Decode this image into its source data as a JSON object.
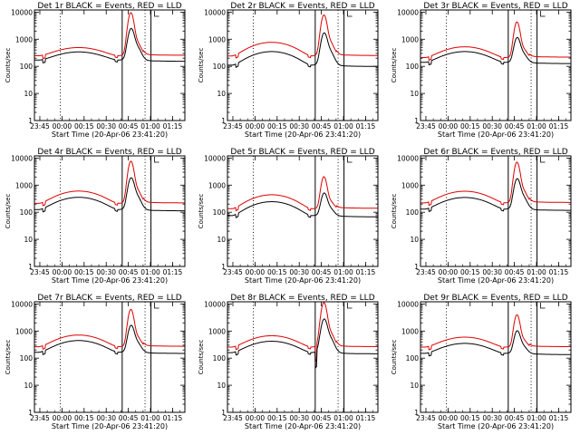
{
  "chart_data": {
    "type": "line",
    "layout": "3x3 grid",
    "shared": {
      "ylabel": "Counts/sec",
      "xlabel": "Start Time (20-Apr-06 23:41:20)",
      "x_tick_labels": [
        "23:45",
        "00:00",
        "00:15",
        "00:30",
        "00:45",
        "01:00",
        "01:15"
      ],
      "x_tick_minutes": [
        3.67,
        18.67,
        33.67,
        48.67,
        63.67,
        78.67,
        93.67
      ],
      "x_range_minutes": [
        0,
        102
      ],
      "y_scale": "log",
      "y_range": [
        1,
        12000
      ],
      "y_tick_labels": [
        "1",
        "10",
        "100",
        "1000",
        "10000"
      ],
      "y_tick_values": [
        1,
        10,
        100,
        1000,
        10000
      ],
      "vertical_lines": [
        {
          "x_minutes": 17.5,
          "style": "dotted"
        },
        {
          "x_minutes": 59.5,
          "style": "solid"
        },
        {
          "x_minutes": 75.0,
          "style": "dotted"
        },
        {
          "x_minutes": 79.0,
          "style": "solid"
        }
      ],
      "series_names": [
        "Events (BLACK)",
        "LLD (RED)"
      ],
      "series_colors": [
        "#000000",
        "#dd0000"
      ]
    },
    "panels": [
      {
        "title": "Det 1r BLACK = Events, RED = LLD",
        "base": 170,
        "bump": 170,
        "flare": 8000,
        "red_ratio": 1.45,
        "dip": false
      },
      {
        "title": "Det 2r BLACK = Events, RED = LLD",
        "base": 110,
        "bump": 240,
        "flare": 5500,
        "red_ratio": 2.2,
        "dip": false
      },
      {
        "title": "Det 3r BLACK = Events, RED = LLD",
        "base": 140,
        "bump": 210,
        "flare": 3500,
        "red_ratio": 1.5,
        "dip": false
      },
      {
        "title": "Det 4r BLACK = Events, RED = LLD",
        "base": 125,
        "bump": 230,
        "flare": 6000,
        "red_ratio": 1.7,
        "dip": false
      },
      {
        "title": "Det 5r BLACK = Events, RED = LLD",
        "base": 75,
        "bump": 170,
        "flare": 1500,
        "red_ratio": 1.8,
        "dip": false
      },
      {
        "title": "Det 6r BLACK = Events, RED = LLD",
        "base": 130,
        "bump": 220,
        "flare": 5500,
        "red_ratio": 1.7,
        "dip": false
      },
      {
        "title": "Det 7r BLACK = Events, RED = LLD",
        "base": 165,
        "bump": 280,
        "flare": 5000,
        "red_ratio": 1.6,
        "dip": false
      },
      {
        "title": "Det 8r BLACK = Events, RED = LLD",
        "base": 160,
        "bump": 260,
        "flare": 9000,
        "red_ratio": 1.6,
        "dip": true
      },
      {
        "title": "Det 9r BLACK = Events, RED = LLD",
        "base": 150,
        "bump": 200,
        "flare": 3000,
        "red_ratio": 1.7,
        "dip": false
      }
    ]
  }
}
